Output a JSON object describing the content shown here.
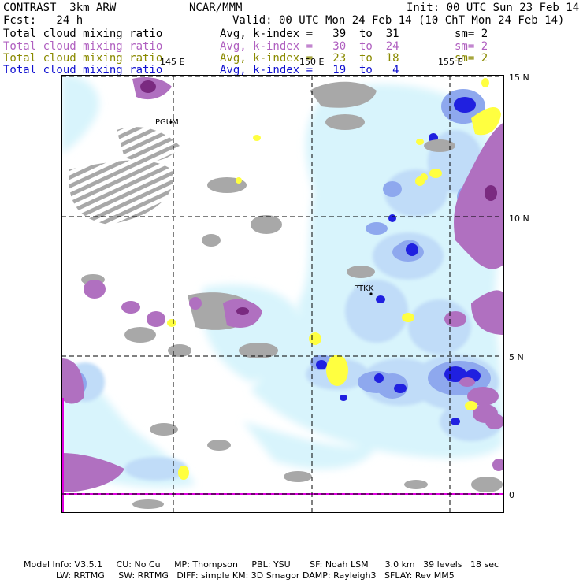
{
  "header": {
    "model": "CONTRAST  3km ARW",
    "org": "NCAR/MMM",
    "init": "Init: 00 UTC Sun 23 Feb 14",
    "fcst": "Fcst:   24 h",
    "valid": "Valid: 00 UTC Mon 24 Feb 14 (10 ChT Mon 24 Feb 14)"
  },
  "legend": [
    {
      "field": "Total cloud mixing ratio",
      "range": "Avg, k-index =   39  to  31",
      "sm": "sm= 2",
      "color": "#000000"
    },
    {
      "field": "Total cloud mixing ratio",
      "range": "Avg, k-index =   30  to  24",
      "sm": "sm= 2",
      "color": "#b060c0"
    },
    {
      "field": "Total cloud mixing ratio",
      "range": "Avg, k-index =   23  to  18",
      "sm": "sm= 2",
      "color": "#8a8a00"
    },
    {
      "field": "Total cloud mixing ratio",
      "range": "Avg, k-index =   19  to   4",
      "sm": "",
      "color": "#1010d0"
    }
  ],
  "map": {
    "lon_labels": [
      "145 E",
      "150 E",
      "155 E"
    ],
    "lat_labels": [
      "15 N",
      "10 N",
      "5 N",
      "0"
    ],
    "stations": [
      "PGUM",
      "PTKK"
    ],
    "colors": {
      "gray": "#a8a8a8",
      "violet": "#b070c0",
      "dark_violet": "#7a2a80",
      "yellow": "#ffff40",
      "pale_cyan": "#d8f4fc",
      "light_blue": "#c0dcf8",
      "mid_blue": "#8ea8ee",
      "deep_blue": "#2020e0",
      "magenta": "#e000e0"
    }
  },
  "footer": {
    "line1": "Model Info: V3.5.1     CU: No Cu     MP: Thompson     PBL: YSU       SF: Noah LSM      3.0 km   39 levels   18 sec",
    "line2": "LW: RRTMG     SW: RRTMG   DIFF: simple KM: 3D Smagor DAMP: Rayleigh3   SFLAY: Rev MM5"
  }
}
